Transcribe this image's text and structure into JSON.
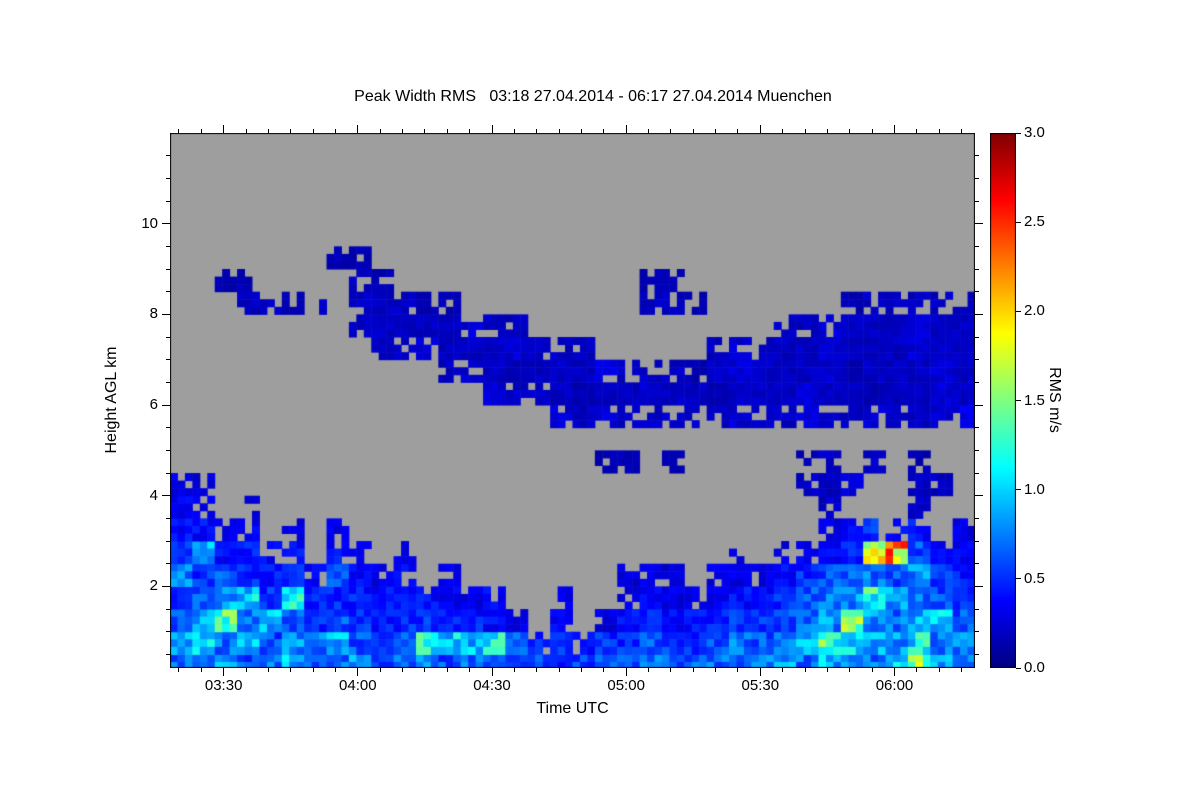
{
  "title": "Peak Width RMS   03:18 27.04.2014 - 06:17 27.04.2014 Muenchen",
  "axes": {
    "xlabel": "Time UTC",
    "ylabel": "Height AGL km",
    "x_range": [
      198,
      378
    ],
    "x_minor_step": 5,
    "x_ticks": [
      {
        "label": "03:30",
        "t": 210
      },
      {
        "label": "04:00",
        "t": 240
      },
      {
        "label": "04:30",
        "t": 270
      },
      {
        "label": "05:00",
        "t": 300
      },
      {
        "label": "05:30",
        "t": 330
      },
      {
        "label": "06:00",
        "t": 360
      }
    ],
    "y_range": [
      0.2,
      12.0
    ],
    "y_minor_step": 0.5,
    "y_ticks": [
      {
        "label": "2",
        "km": 2
      },
      {
        "label": "4",
        "km": 4
      },
      {
        "label": "6",
        "km": 6
      },
      {
        "label": "8",
        "km": 8
      },
      {
        "label": "10",
        "km": 10
      }
    ]
  },
  "colorbar": {
    "label": "RMS m/s",
    "range": [
      0,
      3
    ],
    "ticks": [
      {
        "label": "0.0",
        "v": 0.0
      },
      {
        "label": "0.5",
        "v": 0.5
      },
      {
        "label": "1.0",
        "v": 1.0
      },
      {
        "label": "1.5",
        "v": 1.5
      },
      {
        "label": "2.0",
        "v": 2.0
      },
      {
        "label": "2.5",
        "v": 2.5
      },
      {
        "label": "3.0",
        "v": 3.0
      }
    ],
    "stops": [
      [
        0.0,
        "#000080"
      ],
      [
        0.125,
        "#0000ff"
      ],
      [
        0.375,
        "#00ffff"
      ],
      [
        0.625,
        "#ffff00"
      ],
      [
        0.875,
        "#ff0000"
      ],
      [
        1.0,
        "#800000"
      ]
    ]
  },
  "colors": {
    "no_data": "#9e9e9e",
    "background": "#ffffff",
    "axis": "#000000"
  },
  "chart_data": {
    "type": "heatmap",
    "variable": "Peak Width RMS",
    "unit": "m/s",
    "location": "Muenchen",
    "time_start": "03:18",
    "time_end": "06:17",
    "date": "27.04.2014",
    "x_start_min": 198,
    "x_step_min": 5,
    "y_start_km": 0.0,
    "y_step_km": 0.5,
    "value_range": [
      0,
      3
    ],
    "no_data_value": null,
    "grid_rows_bottom_up": [
      [
        0.7,
        0.6,
        0.8,
        0.6,
        0.7,
        0.9,
        0.6,
        0.7,
        0.8,
        0.6,
        0.7,
        0.8,
        0.6,
        0.7,
        0.6,
        0.5,
        0.6,
        0.5,
        0.55,
        0.6,
        0.6,
        0.7,
        0.6,
        0.65,
        0.7,
        0.6,
        0.7,
        0.8,
        0.7,
        0.9,
        0.8,
        0.7,
        1.0,
        1.5,
        0.9,
        0.7
      ],
      [
        0.9,
        1.1,
        0.7,
        0.9,
        0.6,
        0.8,
        0.7,
        0.9,
        0.6,
        0.5,
        0.6,
        1.2,
        1.0,
        0.9,
        1.1,
        0.6,
        0.45,
        0.5,
        0.4,
        0.5,
        0.5,
        0.6,
        0.55,
        0.5,
        0.6,
        0.7,
        0.6,
        0.7,
        0.9,
        1.3,
        1.0,
        0.9,
        0.8,
        1.1,
        0.7,
        0.8
      ],
      [
        0.6,
        0.8,
        1.3,
        0.7,
        0.9,
        0.6,
        0.5,
        0.6,
        0.5,
        0.45,
        0.5,
        0.5,
        0.5,
        0.45,
        0.4,
        0.3,
        null,
        0.35,
        null,
        0.3,
        0.4,
        0.45,
        0.4,
        0.4,
        0.5,
        0.5,
        0.55,
        0.6,
        0.7,
        0.8,
        1.4,
        0.8,
        0.7,
        0.9,
        1.0,
        0.6
      ],
      [
        0.5,
        0.6,
        0.9,
        1.0,
        0.5,
        1.1,
        0.45,
        0.5,
        0.45,
        0.4,
        0.4,
        0.4,
        0.35,
        0.3,
        0.35,
        null,
        null,
        0.3,
        null,
        null,
        0.3,
        0.35,
        0.3,
        0.3,
        0.35,
        0.4,
        0.4,
        0.5,
        0.6,
        0.7,
        0.8,
        1.2,
        0.9,
        0.7,
        0.6,
        0.5
      ],
      [
        0.8,
        0.5,
        0.6,
        0.5,
        0.45,
        0.5,
        0.35,
        0.6,
        0.4,
        0.3,
        0.35,
        null,
        0.3,
        null,
        null,
        null,
        null,
        null,
        null,
        null,
        0.25,
        0.3,
        0.25,
        null,
        0.3,
        0.3,
        0.3,
        0.4,
        0.5,
        0.6,
        0.7,
        0.7,
        0.6,
        0.8,
        0.5,
        0.45
      ],
      [
        0.5,
        0.9,
        0.4,
        0.45,
        0.35,
        0.4,
        null,
        0.4,
        0.3,
        null,
        0.3,
        null,
        null,
        null,
        null,
        null,
        null,
        null,
        null,
        null,
        null,
        null,
        null,
        null,
        null,
        0.25,
        null,
        0.3,
        0.35,
        0.4,
        0.5,
        1.9,
        2.1,
        0.6,
        0.4,
        0.35
      ],
      [
        0.4,
        0.4,
        0.3,
        0.35,
        null,
        0.3,
        null,
        0.3,
        null,
        null,
        null,
        null,
        null,
        null,
        null,
        null,
        null,
        null,
        null,
        null,
        null,
        null,
        null,
        null,
        null,
        null,
        null,
        null,
        null,
        0.3,
        0.35,
        0.5,
        0.4,
        0.4,
        null,
        0.3
      ],
      [
        0.35,
        0.3,
        null,
        0.3,
        null,
        null,
        null,
        null,
        null,
        null,
        null,
        null,
        null,
        null,
        null,
        null,
        null,
        null,
        null,
        null,
        null,
        null,
        null,
        null,
        null,
        null,
        null,
        null,
        null,
        0.2,
        null,
        null,
        null,
        0.2,
        null,
        null
      ],
      [
        0.3,
        0.25,
        null,
        null,
        null,
        null,
        null,
        null,
        null,
        null,
        null,
        null,
        null,
        null,
        null,
        null,
        null,
        null,
        null,
        null,
        null,
        null,
        null,
        null,
        null,
        null,
        null,
        null,
        0.2,
        0.2,
        0.25,
        null,
        null,
        0.2,
        0.2,
        null
      ],
      [
        null,
        null,
        null,
        null,
        null,
        null,
        null,
        null,
        null,
        null,
        null,
        null,
        null,
        null,
        null,
        null,
        null,
        null,
        null,
        0.15,
        0.15,
        null,
        0.15,
        null,
        null,
        null,
        null,
        null,
        0.15,
        0.2,
        null,
        0.2,
        null,
        0.15,
        null,
        null
      ],
      [
        null,
        null,
        null,
        null,
        null,
        null,
        null,
        null,
        null,
        null,
        null,
        null,
        null,
        null,
        null,
        null,
        null,
        null,
        null,
        null,
        null,
        null,
        null,
        null,
        null,
        null,
        null,
        null,
        null,
        null,
        null,
        null,
        null,
        null,
        null,
        null
      ],
      [
        null,
        null,
        null,
        null,
        null,
        null,
        null,
        null,
        null,
        null,
        null,
        null,
        null,
        null,
        null,
        null,
        null,
        0.25,
        0.2,
        0.25,
        0.2,
        0.2,
        0.25,
        0.2,
        0.2,
        0.25,
        0.2,
        0.2,
        0.25,
        0.2,
        0.2,
        0.25,
        0.2,
        0.2,
        0.25,
        0.3
      ],
      [
        null,
        null,
        null,
        null,
        null,
        null,
        null,
        null,
        null,
        null,
        null,
        null,
        null,
        null,
        0.25,
        0.2,
        0.2,
        0.2,
        0.15,
        0.2,
        0.2,
        0.25,
        0.2,
        0.2,
        0.15,
        0.2,
        0.2,
        0.2,
        0.25,
        0.2,
        0.2,
        0.15,
        0.2,
        0.2,
        0.25,
        0.2
      ],
      [
        null,
        null,
        null,
        null,
        null,
        null,
        null,
        null,
        null,
        null,
        null,
        null,
        0.2,
        0.25,
        0.2,
        0.15,
        0.2,
        0.2,
        0.2,
        0.25,
        0.2,
        0.2,
        0.2,
        0.15,
        0.2,
        0.25,
        0.2,
        0.2,
        0.2,
        0.25,
        0.15,
        0.2,
        0.2,
        0.2,
        0.25,
        0.2
      ],
      [
        null,
        null,
        null,
        null,
        null,
        null,
        null,
        null,
        null,
        0.2,
        0.2,
        0.25,
        0.2,
        0.2,
        0.2,
        0.25,
        0.2,
        0.2,
        0.2,
        null,
        null,
        null,
        null,
        null,
        0.2,
        0.25,
        0.2,
        0.2,
        0.2,
        0.25,
        0.2,
        0.2,
        0.2,
        0.25,
        0.2,
        0.2
      ],
      [
        null,
        null,
        null,
        null,
        null,
        null,
        null,
        null,
        0.2,
        0.2,
        0.2,
        0.2,
        0.2,
        0.25,
        0.2,
        0.2,
        null,
        null,
        null,
        null,
        null,
        null,
        null,
        null,
        null,
        null,
        null,
        0.2,
        0.2,
        0.25,
        0.2,
        0.2,
        0.2,
        0.25,
        0.2,
        0.2
      ],
      [
        null,
        null,
        null,
        0.2,
        0.2,
        0.15,
        0.2,
        null,
        0.2,
        0.2,
        0.2,
        0.15,
        0.15,
        null,
        null,
        null,
        null,
        null,
        null,
        null,
        null,
        0.2,
        0.2,
        0.15,
        null,
        null,
        null,
        null,
        null,
        null,
        0.15,
        0.2,
        0.2,
        0.2,
        0.2,
        0.2
      ],
      [
        null,
        null,
        0.15,
        0.15,
        null,
        null,
        null,
        null,
        0.2,
        0.15,
        null,
        null,
        null,
        null,
        null,
        null,
        null,
        null,
        null,
        null,
        null,
        0.15,
        0.15,
        null,
        null,
        null,
        null,
        null,
        null,
        null,
        null,
        null,
        null,
        null,
        null,
        null
      ],
      [
        null,
        null,
        null,
        null,
        null,
        null,
        null,
        0.15,
        0.15,
        null,
        null,
        null,
        null,
        null,
        null,
        null,
        null,
        null,
        null,
        null,
        null,
        null,
        null,
        null,
        null,
        null,
        null,
        null,
        null,
        null,
        null,
        null,
        null,
        null,
        null,
        null
      ],
      [
        null,
        null,
        null,
        null,
        null,
        null,
        null,
        null,
        null,
        null,
        null,
        null,
        null,
        null,
        null,
        null,
        null,
        null,
        null,
        null,
        null,
        null,
        null,
        null,
        null,
        null,
        null,
        null,
        null,
        null,
        null,
        null,
        null,
        null,
        null,
        null
      ],
      [
        null,
        null,
        null,
        null,
        null,
        null,
        null,
        null,
        null,
        null,
        null,
        null,
        null,
        null,
        null,
        null,
        null,
        null,
        null,
        null,
        null,
        null,
        null,
        null,
        null,
        null,
        null,
        null,
        null,
        null,
        null,
        null,
        null,
        null,
        null,
        null
      ],
      [
        null,
        null,
        null,
        null,
        null,
        null,
        null,
        null,
        null,
        null,
        null,
        null,
        null,
        null,
        null,
        null,
        null,
        null,
        null,
        null,
        null,
        null,
        null,
        null,
        null,
        null,
        null,
        null,
        null,
        null,
        null,
        null,
        null,
        null,
        null,
        null
      ],
      [
        null,
        null,
        null,
        null,
        null,
        null,
        null,
        null,
        null,
        null,
        null,
        null,
        null,
        null,
        null,
        null,
        null,
        null,
        null,
        null,
        null,
        null,
        null,
        null,
        null,
        null,
        null,
        null,
        null,
        null,
        null,
        null,
        null,
        null,
        null,
        null
      ],
      [
        null,
        null,
        null,
        null,
        null,
        null,
        null,
        null,
        null,
        null,
        null,
        null,
        null,
        null,
        null,
        null,
        null,
        null,
        null,
        null,
        null,
        null,
        null,
        null,
        null,
        null,
        null,
        null,
        null,
        null,
        null,
        null,
        null,
        null,
        null,
        null
      ]
    ]
  }
}
